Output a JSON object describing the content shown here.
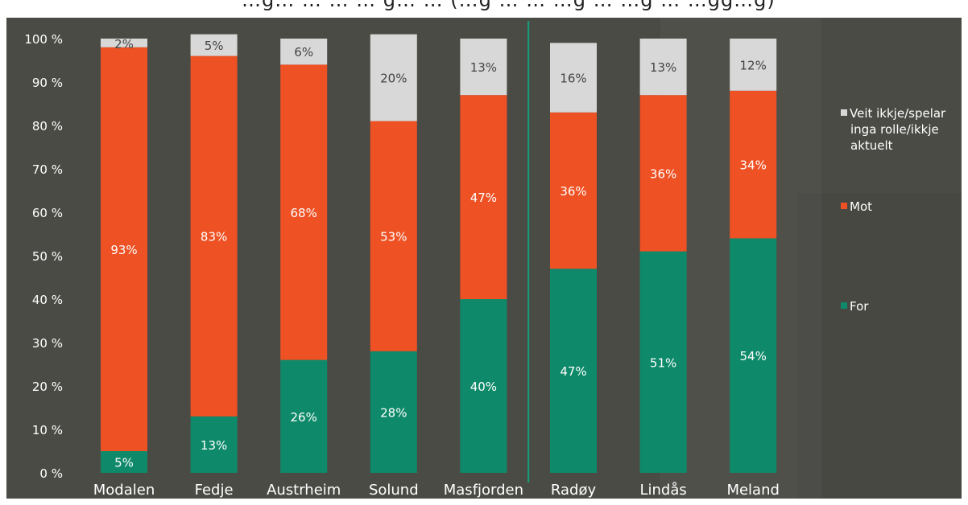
{
  "page": {
    "title_fragment": "…g… … … … g… … (…g … … …g … …g … …gg…g)"
  },
  "chart_data": {
    "type": "bar",
    "stacked": true,
    "percent_scale": true,
    "categories": [
      "Modalen",
      "Fedje",
      "Austrheim",
      "Solund",
      "Masfjorden",
      "Radøy",
      "Lindås",
      "Meland"
    ],
    "series": [
      {
        "name": "For",
        "color": "#0e8a6a",
        "values": [
          5,
          13,
          26,
          28,
          40,
          47,
          51,
          54
        ],
        "labels": [
          "5%",
          "13%",
          "26%",
          "28%",
          "40%",
          "47%",
          "51%",
          "54%"
        ]
      },
      {
        "name": "Mot",
        "color": "#ee5124",
        "values": [
          93,
          83,
          68,
          53,
          47,
          36,
          36,
          34
        ],
        "labels": [
          "93%",
          "83%",
          "68%",
          "53%",
          "47%",
          "36%",
          "36%",
          "34%"
        ]
      },
      {
        "name": "Veit ikkje/spelar inga rolle/ikkje aktuelt",
        "color": "#d8d8d8",
        "values": [
          2,
          5,
          6,
          20,
          13,
          16,
          13,
          12
        ],
        "labels": [
          "2%",
          "5%",
          "6%",
          "20%",
          "13%",
          "16%",
          "13%",
          "12%"
        ]
      }
    ],
    "yticks": [
      "0 %",
      "10 %",
      "20 %",
      "30 %",
      "40 %",
      "50 %",
      "60 %",
      "70 %",
      "80 %",
      "90 %",
      "100 %"
    ],
    "ylim": [
      0,
      100
    ],
    "divider_after_category": "Masfjorden",
    "legend_position": "right",
    "legend_lines": {
      "Veit ikkje/spelar inga rolle/ikkje aktuelt": [
        "Veit ikkje/spelar",
        "inga rolle/ikkje",
        "aktuelt"
      ]
    },
    "background_color": "#4b4b46",
    "text_color": "#ffffff"
  }
}
